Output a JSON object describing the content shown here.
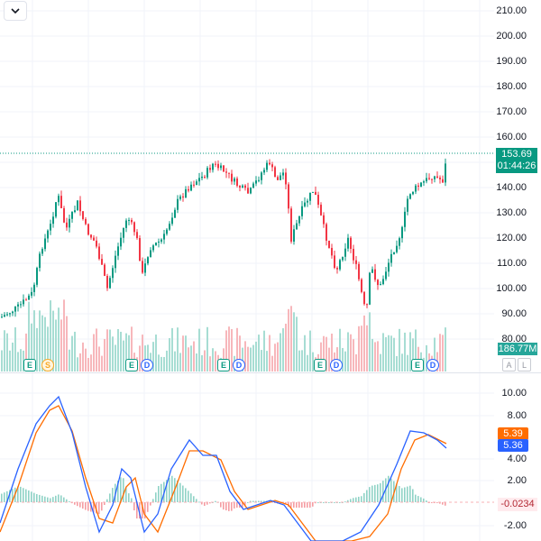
{
  "price_axis": {
    "ticks": [
      "210.00",
      "200.00",
      "190.00",
      "180.00",
      "170.00",
      "160.00",
      "140.00",
      "130.00",
      "120.00",
      "110.00",
      "100.00",
      "90.00",
      "80.00"
    ]
  },
  "last_price": {
    "value": "153.69",
    "countdown": "01:44:26"
  },
  "volume": {
    "last_label": "186.77M"
  },
  "macd": {
    "ticks": [
      "10.00",
      "8.00",
      "4.00",
      "2.00",
      "-2.00"
    ],
    "signal_label": "5.39",
    "macd_label": "5.36",
    "hist_label": "-0.0234",
    "colors": {
      "macd": "#2962ff",
      "signal": "#ff6d00",
      "hist_up": "#26a69a",
      "hist_down": "#ef5350"
    }
  },
  "events": [
    {
      "type": "E"
    },
    {
      "type": "S"
    },
    {
      "type": "E"
    },
    {
      "type": "D"
    },
    {
      "type": "E"
    },
    {
      "type": "D"
    },
    {
      "type": "E"
    },
    {
      "type": "D"
    },
    {
      "type": "E"
    },
    {
      "type": "D"
    }
  ],
  "scale_buttons": {
    "auto": "A",
    "log": "L"
  },
  "colors": {
    "up": "#089981",
    "down": "#f23645",
    "grid": "#f0f3fa"
  }
}
